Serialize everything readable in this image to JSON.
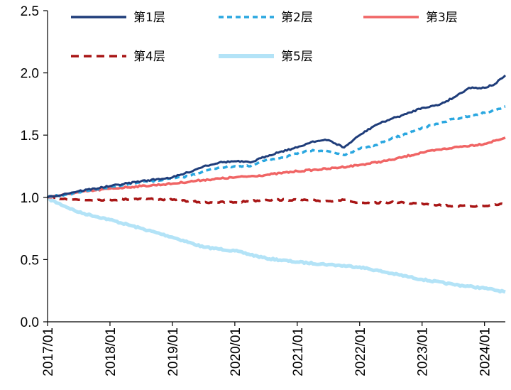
{
  "chart_data": {
    "type": "line",
    "title": "",
    "xlabel": "",
    "ylabel": "",
    "x_ticks": [
      "2017/01",
      "2018/01",
      "2019/01",
      "2020/01",
      "2021/01",
      "2022/01",
      "2023/01",
      "2024/01"
    ],
    "xlim": [
      "2017/01",
      "2024/05"
    ],
    "ylim": [
      0.0,
      2.5
    ],
    "y_ticks": [
      "0.0",
      "0.5",
      "1.0",
      "1.5",
      "2.0",
      "2.5"
    ],
    "grid": false,
    "legend": "top",
    "series": [
      {
        "name": "第1层",
        "color": "#1f3d7a",
        "style": "solid",
        "x": [
          "2017/01",
          "2017/07",
          "2018/01",
          "2018/07",
          "2019/01",
          "2019/04",
          "2019/07",
          "2019/10",
          "2020/01",
          "2020/04",
          "2020/07",
          "2020/10",
          "2021/01",
          "2021/04",
          "2021/07",
          "2021/10",
          "2022/01",
          "2022/04",
          "2022/07",
          "2022/10",
          "2023/01",
          "2023/04",
          "2023/07",
          "2023/10",
          "2024/01",
          "2024/03",
          "2024/05"
        ],
        "values": [
          1.0,
          1.05,
          1.09,
          1.13,
          1.16,
          1.2,
          1.25,
          1.28,
          1.29,
          1.28,
          1.33,
          1.37,
          1.4,
          1.45,
          1.46,
          1.4,
          1.5,
          1.58,
          1.63,
          1.67,
          1.72,
          1.74,
          1.8,
          1.88,
          1.88,
          1.91,
          1.98
        ]
      },
      {
        "name": "第2层",
        "color": "#2aa7e0",
        "style": "dashed",
        "x": [
          "2017/01",
          "2017/07",
          "2018/01",
          "2018/07",
          "2019/01",
          "2019/04",
          "2019/07",
          "2019/10",
          "2020/01",
          "2020/04",
          "2020/07",
          "2020/10",
          "2021/01",
          "2021/04",
          "2021/07",
          "2021/10",
          "2022/01",
          "2022/04",
          "2022/07",
          "2022/10",
          "2023/01",
          "2023/04",
          "2023/07",
          "2023/10",
          "2024/01",
          "2024/03",
          "2024/05"
        ],
        "values": [
          1.0,
          1.04,
          1.08,
          1.12,
          1.15,
          1.17,
          1.21,
          1.24,
          1.25,
          1.25,
          1.3,
          1.32,
          1.35,
          1.38,
          1.37,
          1.34,
          1.39,
          1.42,
          1.47,
          1.51,
          1.56,
          1.59,
          1.63,
          1.65,
          1.68,
          1.7,
          1.73
        ]
      },
      {
        "name": "第3层",
        "color": "#f06565",
        "style": "solid",
        "x": [
          "2017/01",
          "2017/07",
          "2018/01",
          "2018/07",
          "2019/01",
          "2019/07",
          "2020/01",
          "2020/07",
          "2021/01",
          "2021/07",
          "2022/01",
          "2022/07",
          "2023/01",
          "2023/07",
          "2024/01",
          "2024/05"
        ],
        "values": [
          1.0,
          1.04,
          1.07,
          1.09,
          1.11,
          1.14,
          1.16,
          1.18,
          1.21,
          1.23,
          1.26,
          1.3,
          1.36,
          1.4,
          1.43,
          1.48
        ]
      },
      {
        "name": "第4层",
        "color": "#a81515",
        "style": "dashed",
        "x": [
          "2017/01",
          "2017/07",
          "2018/01",
          "2018/07",
          "2019/01",
          "2019/07",
          "2020/01",
          "2020/07",
          "2021/01",
          "2021/07",
          "2021/10",
          "2022/01",
          "2022/07",
          "2023/01",
          "2023/07",
          "2024/01",
          "2024/05"
        ],
        "values": [
          1.0,
          0.98,
          0.98,
          0.99,
          0.98,
          0.96,
          0.96,
          0.98,
          0.98,
          0.97,
          0.98,
          0.95,
          0.96,
          0.95,
          0.93,
          0.93,
          0.95
        ]
      },
      {
        "name": "第5层",
        "color": "#b3e3f7",
        "style": "solid",
        "x": [
          "2017/01",
          "2017/07",
          "2018/01",
          "2018/07",
          "2019/01",
          "2019/07",
          "2020/01",
          "2020/07",
          "2021/01",
          "2021/07",
          "2022/01",
          "2022/07",
          "2023/01",
          "2023/07",
          "2024/01",
          "2024/05"
        ],
        "values": [
          0.99,
          0.88,
          0.82,
          0.75,
          0.68,
          0.6,
          0.57,
          0.51,
          0.48,
          0.46,
          0.44,
          0.39,
          0.34,
          0.3,
          0.27,
          0.24
        ]
      }
    ]
  }
}
